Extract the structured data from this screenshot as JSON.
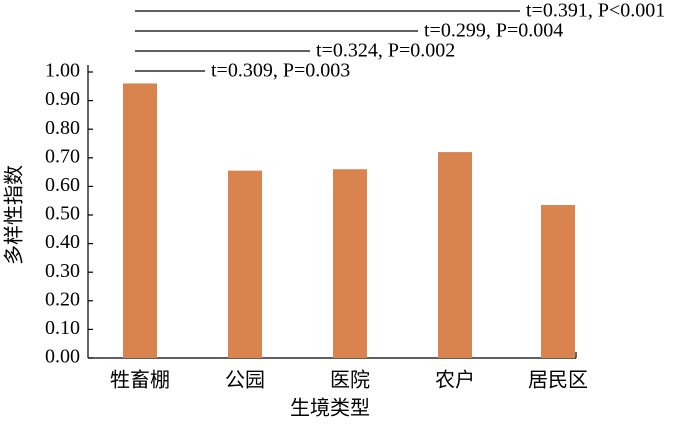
{
  "chart_data": {
    "type": "bar",
    "y_label": "多样性指数",
    "x_label": "生境类型",
    "categories": [
      "牲畜棚",
      "公园",
      "医院",
      "农户",
      "居民区"
    ],
    "values": [
      0.96,
      0.655,
      0.66,
      0.72,
      0.535
    ],
    "color": "#d9834f",
    "ylim": [
      0,
      1
    ],
    "yticks": [
      {
        "value": 0,
        "label": "0.00"
      },
      {
        "value": 0.1,
        "label": "0.10"
      },
      {
        "value": 0.2,
        "label": "0.20"
      },
      {
        "value": 0.3,
        "label": "0.30"
      },
      {
        "value": 0.4,
        "label": "0.40"
      },
      {
        "value": 0.5,
        "label": "0.50"
      },
      {
        "value": 0.6,
        "label": "0.60"
      },
      {
        "value": 0.7,
        "label": "0.70"
      },
      {
        "value": 0.8,
        "label": "0.80"
      },
      {
        "value": 0.9,
        "label": "0.90"
      },
      {
        "value": 1,
        "label": "1.00"
      }
    ],
    "annotations": [
      "t=0.391, P<0.001",
      "t=0.299, P=0.004",
      "t=0.324, P=0.002",
      "t=0.309, P=0.003"
    ]
  }
}
